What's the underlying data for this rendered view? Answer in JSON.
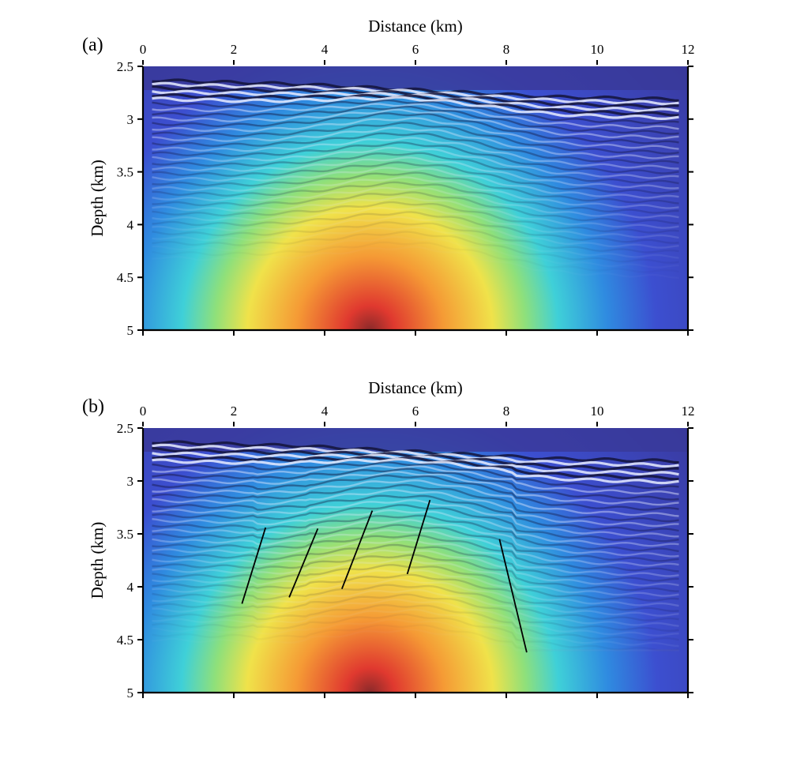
{
  "chart_data": [
    {
      "type": "heatmap",
      "panel_label": "(a)",
      "title": "",
      "xlabel": "Distance (km)",
      "ylabel": "Depth (km)",
      "xlim": [
        0,
        12
      ],
      "ylim": [
        5,
        2.5
      ],
      "x_ticks": [
        "0",
        "2",
        "4",
        "6",
        "8",
        "10",
        "12"
      ],
      "y_ticks": [
        "2.5",
        "3",
        "3.5",
        "4",
        "4.5",
        "5"
      ],
      "colormap": "jet",
      "velocity_peak": {
        "x": 5,
        "depth": 5
      },
      "faults": []
    },
    {
      "type": "heatmap",
      "panel_label": "(b)",
      "title": "",
      "xlabel": "Distance (km)",
      "ylabel": "Depth (km)",
      "xlim": [
        0,
        12
      ],
      "ylim": [
        5,
        2.5
      ],
      "x_ticks": [
        "0",
        "2",
        "4",
        "6",
        "8",
        "10",
        "12"
      ],
      "y_ticks": [
        "2.5",
        "3",
        "3.5",
        "4",
        "4.5",
        "5"
      ],
      "colormap": "jet",
      "velocity_peak": {
        "x": 5,
        "depth": 5
      },
      "faults": [
        {
          "x1": 2.18,
          "y1": 4.16,
          "x2": 2.7,
          "y2": 3.44
        },
        {
          "x1": 3.22,
          "y1": 4.1,
          "x2": 3.85,
          "y2": 3.45
        },
        {
          "x1": 4.38,
          "y1": 4.02,
          "x2": 5.05,
          "y2": 3.28
        },
        {
          "x1": 5.82,
          "y1": 3.88,
          "x2": 6.32,
          "y2": 3.18
        },
        {
          "x1": 7.85,
          "y1": 3.55,
          "x2": 8.45,
          "y2": 4.62
        }
      ]
    }
  ],
  "colors": {
    "colormap_stops": [
      "#3a3aa0",
      "#3c4fd0",
      "#2f8be0",
      "#3fd0d8",
      "#8fe07a",
      "#f0e24a",
      "#f59a35",
      "#e0392f"
    ],
    "axis": "#000000",
    "reflector_dark": "#14143a",
    "reflector_light": "#e8ecff"
  }
}
